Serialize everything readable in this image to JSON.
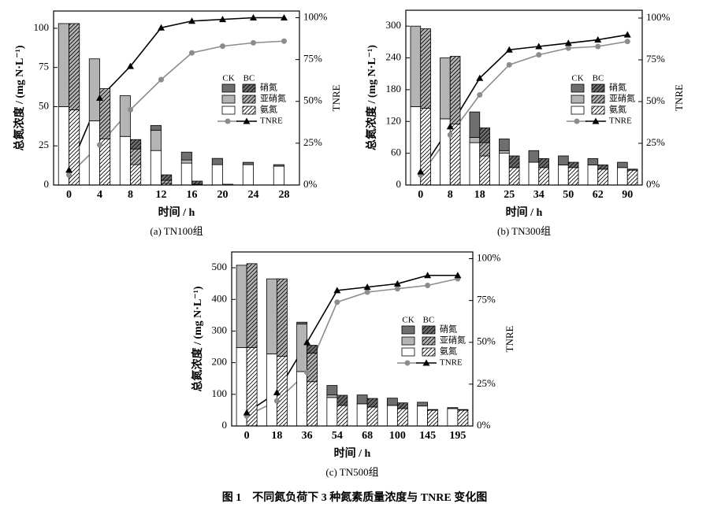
{
  "figure_caption": "图 1　不同氮负荷下 3 种氮素质量浓度与 TNRE 变化图",
  "chart_data": [
    {
      "type": "stacked-bar-line",
      "caption": "(a) TN100组",
      "xlabel": "时间 / h",
      "ylabel": "总氮浓度 / (mg N·L⁻¹)",
      "y2label": "TNRE",
      "line_name": "TNRE",
      "categories": [
        "0",
        "4",
        "8",
        "12",
        "16",
        "20",
        "24",
        "28"
      ],
      "ylim": [
        0,
        111
      ],
      "yticks": [
        0,
        25,
        50,
        75,
        100
      ],
      "y2lim": [
        0,
        104
      ],
      "y2ticks": [
        {
          "value": 0,
          "label": "0%"
        },
        {
          "value": 25,
          "label": "25%"
        },
        {
          "value": 50,
          "label": "50%"
        },
        {
          "value": 75,
          "label": "75%"
        },
        {
          "value": 100,
          "label": "100%"
        }
      ],
      "groups": [
        {
          "name": "CK",
          "hatched": false,
          "line_color": "#8c8c8c",
          "marker": "circle",
          "series": [
            {
              "name": "氨氮",
              "color": "#ffffff",
              "values": [
                50,
                41,
                31,
                22,
                14,
                13,
                13,
                12
              ]
            },
            {
              "name": "亚硝氮",
              "color": "#b4b4b4",
              "values": [
                53,
                39.5,
                26,
                13,
                2,
                0,
                0,
                0
              ]
            },
            {
              "name": "硝氮",
              "color": "#6e6e6e",
              "values": [
                0,
                0,
                0,
                3,
                5,
                4,
                1.5,
                1
              ]
            }
          ],
          "tnre": [
            6,
            24,
            45,
            63,
            79,
            83,
            85,
            86
          ]
        },
        {
          "name": "BC",
          "hatched": true,
          "line_color": "#000000",
          "marker": "triangle",
          "series": [
            {
              "name": "氨氮",
              "color": "#ffffff",
              "values": [
                48,
                29.5,
                13,
                1,
                0.5,
                0.5,
                0,
                0
              ]
            },
            {
              "name": "亚硝氮",
              "color": "#b4b4b4",
              "values": [
                55,
                32,
                10,
                2,
                0,
                0,
                0,
                0
              ]
            },
            {
              "name": "硝氮",
              "color": "#6e6e6e",
              "values": [
                0,
                0,
                6,
                3.5,
                2,
                0,
                0,
                0
              ]
            }
          ],
          "tnre": [
            9,
            52,
            71,
            94,
            98,
            99,
            100,
            100
          ]
        }
      ]
    },
    {
      "type": "stacked-bar-line",
      "caption": "(b) TN300组",
      "xlabel": "时间 / h",
      "ylabel": "总氮浓度 / (mg N·L⁻¹)",
      "y2label": "TNRE",
      "line_name": "TNRE",
      "categories": [
        "0",
        "8",
        "18",
        "25",
        "34",
        "50",
        "62",
        "90"
      ],
      "ylim": [
        0,
        330
      ],
      "yticks": [
        0,
        60,
        120,
        180,
        240,
        300
      ],
      "y2lim": [
        0,
        104.7
      ],
      "y2ticks": [
        {
          "value": 0,
          "label": "0%"
        },
        {
          "value": 25,
          "label": "25%"
        },
        {
          "value": 50,
          "label": "50%"
        },
        {
          "value": 75,
          "label": "75%"
        },
        {
          "value": 100,
          "label": "100%"
        }
      ],
      "groups": [
        {
          "name": "CK",
          "hatched": false,
          "line_color": "#8c8c8c",
          "marker": "circle",
          "series": [
            {
              "name": "氨氮",
              "color": "#ffffff",
              "values": [
                148,
                125,
                80,
                60,
                43,
                38,
                38,
                33
              ]
            },
            {
              "name": "亚硝氮",
              "color": "#b4b4b4",
              "values": [
                152,
                115,
                10,
                5,
                0,
                0,
                0,
                0
              ]
            },
            {
              "name": "硝氮",
              "color": "#6e6e6e",
              "values": [
                0,
                0,
                48,
                22,
                22,
                17,
                12,
                10
              ]
            }
          ],
          "tnre": [
            6,
            30,
            54,
            72,
            78,
            82,
            83,
            86
          ]
        },
        {
          "name": "BC",
          "hatched": true,
          "line_color": "#000000",
          "marker": "triangle",
          "series": [
            {
              "name": "氨氮",
              "color": "#ffffff",
              "values": [
                145,
                115,
                55,
                33,
                33,
                33,
                30,
                28
              ]
            },
            {
              "name": "亚硝氮",
              "color": "#b4b4b4",
              "values": [
                150,
                128,
                25,
                0,
                0,
                0,
                0,
                0
              ]
            },
            {
              "name": "硝氮",
              "color": "#6e6e6e",
              "values": [
                0,
                0,
                28,
                22,
                17,
                10,
                8,
                2
              ]
            }
          ],
          "tnre": [
            8,
            35,
            64,
            81,
            83,
            85,
            87,
            90
          ]
        }
      ]
    },
    {
      "type": "stacked-bar-line",
      "caption": "(c) TN500组",
      "xlabel": "时间 / h",
      "ylabel": "总氮浓度 / (mg N·L⁻¹)",
      "y2label": "TNRE",
      "line_name": "TNRE",
      "categories": [
        "0",
        "18",
        "36",
        "54",
        "68",
        "100",
        "145",
        "195"
      ],
      "ylim": [
        0,
        550
      ],
      "yticks": [
        0,
        100,
        200,
        300,
        400,
        500
      ],
      "y2lim": [
        0,
        104
      ],
      "y2ticks": [
        {
          "value": 0,
          "label": "0%"
        },
        {
          "value": 25,
          "label": "25%"
        },
        {
          "value": 50,
          "label": "50%"
        },
        {
          "value": 75,
          "label": "75%"
        },
        {
          "value": 100,
          "label": "100%"
        }
      ],
      "groups": [
        {
          "name": "CK",
          "hatched": false,
          "line_color": "#8c8c8c",
          "marker": "circle",
          "series": [
            {
              "name": "氨氮",
              "color": "#ffffff",
              "values": [
                248,
                228,
                172,
                90,
                70,
                65,
                63,
                55
              ]
            },
            {
              "name": "亚硝氮",
              "color": "#b4b4b4",
              "values": [
                260,
                237,
                150,
                8,
                0,
                0,
                0,
                0
              ]
            },
            {
              "name": "硝氮",
              "color": "#6e6e6e",
              "values": [
                0,
                0,
                6,
                30,
                28,
                23,
                12,
                3
              ]
            }
          ],
          "tnre": [
            6,
            15,
            32,
            74,
            80,
            82,
            84,
            88
          ]
        },
        {
          "name": "BC",
          "hatched": true,
          "line_color": "#000000",
          "marker": "triangle",
          "series": [
            {
              "name": "氨氮",
              "color": "#ffffff",
              "values": [
                248,
                220,
                140,
                65,
                60,
                55,
                50,
                50
              ]
            },
            {
              "name": "亚硝氮",
              "color": "#b4b4b4",
              "values": [
                265,
                245,
                90,
                0,
                0,
                0,
                0,
                0
              ]
            },
            {
              "name": "硝氮",
              "color": "#6e6e6e",
              "values": [
                0,
                0,
                25,
                32,
                27,
                18,
                2,
                2
              ]
            }
          ],
          "tnre": [
            8,
            20,
            50,
            81,
            83,
            85,
            90,
            90
          ]
        }
      ]
    }
  ]
}
